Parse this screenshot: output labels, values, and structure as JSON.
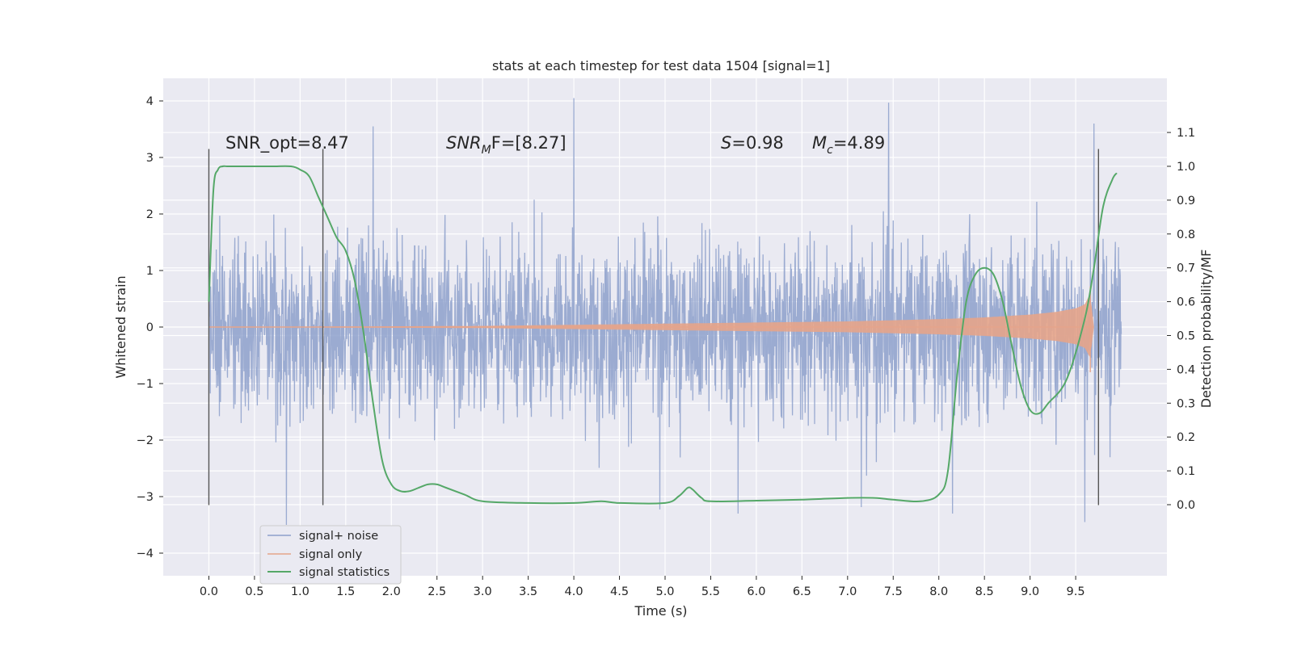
{
  "chart_data": {
    "type": "line",
    "title": "stats at each timestep for test data 1504 [signal=1]",
    "xlabel": "Time (s)",
    "ylabel": "Whitened strain",
    "y2label": "Detection probability/MF",
    "xlim": [
      -0.5,
      10.5
    ],
    "ylim": [
      -4.4,
      4.4
    ],
    "y2lim": [
      -0.21,
      1.26
    ],
    "x_ticks": [
      "0.0",
      "0.5",
      "1.0",
      "1.5",
      "2.0",
      "2.5",
      "3.0",
      "3.5",
      "4.0",
      "4.5",
      "5.0",
      "5.5",
      "6.0",
      "6.5",
      "7.0",
      "7.5",
      "8.0",
      "8.5",
      "9.0",
      "9.5"
    ],
    "y_ticks": [
      "4",
      "3",
      "2",
      "1",
      "0",
      "−1",
      "−2",
      "−3",
      "−4"
    ],
    "y2_ticks": [
      "1.1",
      "1.0",
      "0.9",
      "0.8",
      "0.7",
      "0.6",
      "0.5",
      "0.4",
      "0.3",
      "0.2",
      "0.1",
      "0.0"
    ],
    "grid": true,
    "legend_position": "lower-left",
    "annotations": {
      "snr_opt": "SNR_opt=8.47",
      "snr_mf_sym": "SNR",
      "snr_mf_sub": "M",
      "snr_mf_rest": "F=[8.27]",
      "s_sym": "S",
      "s_val": "=0.98",
      "mc_sym": "M",
      "mc_sub": "c",
      "mc_val": "=4.89"
    },
    "vlines": [
      0.0,
      1.25,
      9.75
    ],
    "vline_range": [
      -3.15,
      3.15
    ],
    "series": [
      {
        "name": "signal+ noise",
        "color": "#8da0cb",
        "x_range": [
          0.0,
          10.0
        ],
        "envelope": {
          "typical_abs": [
            1.0,
            2.5
          ],
          "max_peak": 4.05,
          "min_peak": -3.8,
          "note_points": [
            [
              4.0,
              4.05
            ],
            [
              7.45,
              3.97
            ],
            [
              9.7,
              3.6
            ],
            [
              1.8,
              3.55
            ],
            [
              5.8,
              -3.3
            ],
            [
              0.85,
              -3.5
            ],
            [
              8.15,
              -3.3
            ],
            [
              9.6,
              -3.45
            ]
          ]
        }
      },
      {
        "name": "signal only",
        "color": "#e5a48a",
        "x": [
          0.0,
          3.0,
          4.5,
          6.0,
          7.0,
          8.0,
          8.5,
          9.0,
          9.3,
          9.5,
          9.6,
          9.66,
          9.7
        ],
        "amplitude": [
          0.0,
          0.02,
          0.05,
          0.08,
          0.1,
          0.14,
          0.17,
          0.22,
          0.27,
          0.33,
          0.4,
          0.6,
          0.0
        ]
      },
      {
        "name": "signal statistics",
        "color": "#55a868",
        "axis": "right",
        "x": [
          0.0,
          0.05,
          0.1,
          0.15,
          0.2,
          0.3,
          0.5,
          0.7,
          0.9,
          1.0,
          1.1,
          1.2,
          1.3,
          1.4,
          1.5,
          1.6,
          1.7,
          1.8,
          1.9,
          2.0,
          2.1,
          2.2,
          2.3,
          2.4,
          2.5,
          2.6,
          2.8,
          3.0,
          3.5,
          4.0,
          4.3,
          4.5,
          5.0,
          5.15,
          5.25,
          5.3,
          5.4,
          5.5,
          6.0,
          6.5,
          7.0,
          7.3,
          7.5,
          7.8,
          8.0,
          8.1,
          8.2,
          8.3,
          8.4,
          8.5,
          8.6,
          8.7,
          8.8,
          8.9,
          9.0,
          9.1,
          9.2,
          9.4,
          9.6,
          9.7,
          9.8,
          9.9,
          9.95
        ],
        "y": [
          0.6,
          0.93,
          0.99,
          1.0,
          1.0,
          1.0,
          1.0,
          1.0,
          1.0,
          0.99,
          0.97,
          0.91,
          0.85,
          0.79,
          0.75,
          0.66,
          0.5,
          0.3,
          0.13,
          0.06,
          0.04,
          0.04,
          0.05,
          0.06,
          0.06,
          0.05,
          0.03,
          0.01,
          0.005,
          0.005,
          0.01,
          0.005,
          0.005,
          0.025,
          0.05,
          0.045,
          0.02,
          0.01,
          0.012,
          0.015,
          0.02,
          0.02,
          0.015,
          0.01,
          0.03,
          0.1,
          0.38,
          0.6,
          0.68,
          0.7,
          0.68,
          0.6,
          0.47,
          0.35,
          0.28,
          0.27,
          0.3,
          0.37,
          0.55,
          0.7,
          0.88,
          0.96,
          0.98
        ]
      }
    ]
  }
}
